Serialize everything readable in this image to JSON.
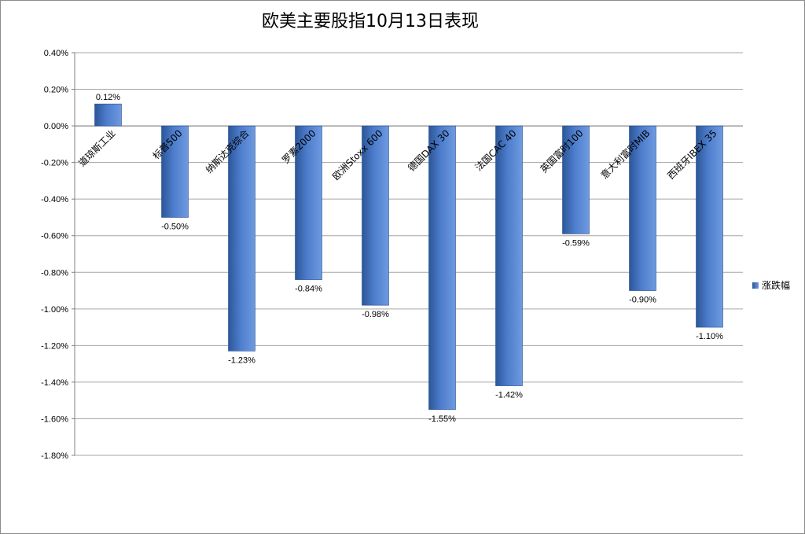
{
  "chart_data": {
    "type": "bar",
    "title": "欧美主要股指10月13日表现",
    "categories": [
      "道琼斯工业",
      "标普500",
      "纳斯达克综合",
      "罗素2000",
      "欧洲Stoxx 600",
      "德国DAX 30",
      "法国CAC 40",
      "英国富时100",
      "意大利富时MIB",
      "西班牙IBEX 35"
    ],
    "series": [
      {
        "name": "涨跌幅",
        "values": [
          0.12,
          -0.5,
          -1.23,
          -0.84,
          -0.98,
          -1.55,
          -1.42,
          -0.59,
          -0.9,
          -1.1
        ],
        "labels": [
          "0.12%",
          "-0.50%",
          "-1.23%",
          "-0.84%",
          "-0.98%",
          "-1.55%",
          "-1.42%",
          "-0.59%",
          "-0.90%",
          "-1.10%"
        ]
      }
    ],
    "ylim": [
      -1.8,
      0.4
    ],
    "yticks": [
      0.4,
      0.2,
      0.0,
      -0.2,
      -0.4,
      -0.6,
      -0.8,
      -1.0,
      -1.2,
      -1.4,
      -1.6,
      -1.8
    ],
    "ytick_labels": [
      "0.40%",
      "0.20%",
      "0.00%",
      "-0.20%",
      "-0.40%",
      "-0.60%",
      "-0.80%",
      "-1.00%",
      "-1.20%",
      "-1.40%",
      "-1.60%",
      "-1.80%"
    ],
    "grid": true,
    "legend_position": "right",
    "bar_color": "#3a66b0"
  }
}
